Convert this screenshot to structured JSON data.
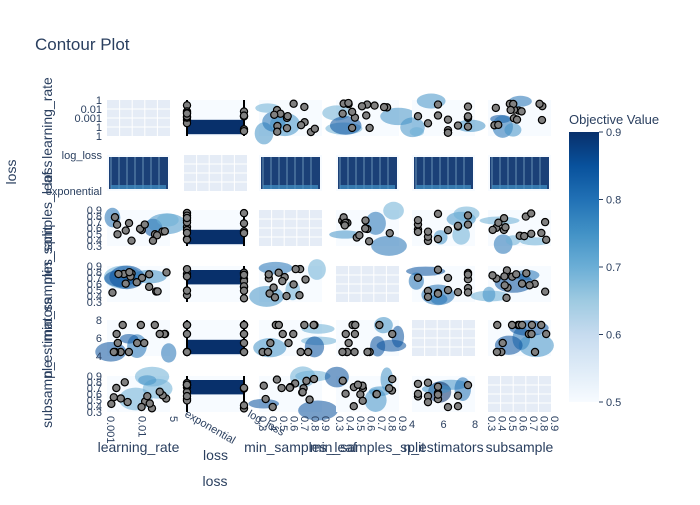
{
  "chart_data": {
    "type": "contour",
    "title": "Contour Plot",
    "variables": [
      "learning_rate",
      "loss",
      "min_samples_leaf",
      "min_samples_split",
      "n_estimators",
      "subsample"
    ],
    "axis_labels": {
      "x": [
        "learning_rate",
        "loss",
        "min_samples_leaf",
        "min_samples_split",
        "n_estimators",
        "subsample"
      ],
      "y": [
        "learning_rate",
        "loss",
        "min_samples_leaf",
        "min_samples_split",
        "n_estimators",
        "subsample"
      ],
      "outer_y": "loss",
      "outer_x": "loss"
    },
    "tick_labels": {
      "learning_rate_y": [
        "1",
        "0.01",
        "0.001",
        "1",
        "1"
      ],
      "loss_y": [
        "log_loss",
        "exponential"
      ],
      "min_samples_leaf_y": [
        "0.9",
        "0.8",
        "0.7",
        "0.6",
        "0.5",
        "0.4",
        "0.3"
      ],
      "min_samples_split_y": [
        "0.9",
        "0.8",
        "0.7",
        "0.6",
        "0.5",
        "0.4",
        "0.3"
      ],
      "n_estimators_y": [
        "8",
        "6",
        "4"
      ],
      "subsample_y": [
        "0.9",
        "0.8",
        "0.7",
        "0.6",
        "0.5",
        "0.4",
        "0.3"
      ],
      "learning_rate_x": [
        "0.001",
        "0.01",
        "5"
      ],
      "loss_x": [
        "exponential",
        "log_loss"
      ],
      "min_samples_leaf_x": [
        "0.3",
        "0.4",
        "0.5",
        "0.6",
        "0.7",
        "0.8",
        "0.9"
      ],
      "min_samples_split_x": [
        "0.3",
        "0.4",
        "0.5",
        "0.6",
        "0.7",
        "0.8",
        "0.9"
      ],
      "n_estimators_x": [
        "4",
        "6",
        "8"
      ],
      "subsample_x": [
        "0.3",
        "0.4",
        "0.5",
        "0.6",
        "0.7",
        "0.8",
        "0.9"
      ]
    },
    "colorbar": {
      "title": "Objective Value",
      "range": [
        0.5,
        0.9
      ],
      "ticks": [
        "0.9",
        "0.8",
        "0.7",
        "0.6",
        "0.5"
      ],
      "colorscale": [
        "#f7fbff",
        "#deebf7",
        "#c6dbef",
        "#9ecae1",
        "#6baed6",
        "#4292c6",
        "#2171b5",
        "#08519c",
        "#08306b"
      ]
    },
    "grid": true,
    "marker_color": "#808080",
    "marker_edge": "#000000"
  }
}
